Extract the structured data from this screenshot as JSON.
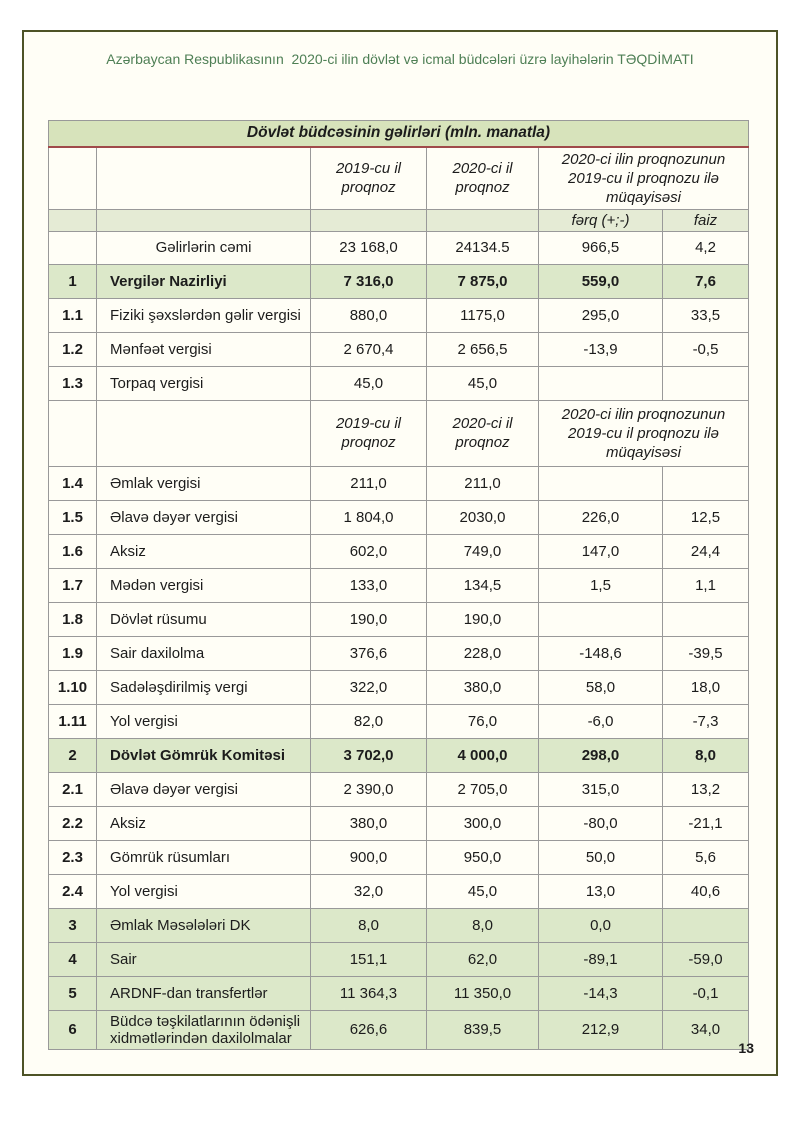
{
  "page": {
    "header": "Azərbaycan Respublikasının  2020-ci ilin dövlət və icmal büdcələri üzrə layihələrin TƏQDİMATI",
    "page_number": "13"
  },
  "colors": {
    "header_text": "#4e7f55",
    "frame_border": "#4d5326",
    "title_bg": "#d7e3bb",
    "title_underline": "#a04a4a",
    "row_green": "#dce8c9",
    "subheader_bg": "#e5ebd5"
  },
  "table": {
    "title": "Dövlət büdcəsinin gəlirləri (mln. manatla)",
    "headers": {
      "col2019": "2019-cu il proqnoz",
      "col2020": "2020-ci il proqnoz",
      "comparison": "2020-ci ilin proqnozunun 2019-cu il proqnozu ilə müqayisəsi",
      "diff": "fərq (+;-)",
      "pct": "faiz"
    },
    "rows": [
      {
        "type": "title"
      },
      {
        "type": "columns"
      },
      {
        "type": "subcols"
      },
      {
        "type": "total",
        "num": "",
        "name": "Gəlirlərin cəmi",
        "v2019": "23 168,0",
        "v2020": "24134.5",
        "diff": "966,5",
        "pct": "4,2"
      },
      {
        "type": "section",
        "num": "1",
        "name": "Vergilər Nazirliyi",
        "v2019": "7 316,0",
        "v2020": "7 875,0",
        "diff": "559,0",
        "pct": "7,6"
      },
      {
        "type": "item",
        "num": "1.1",
        "name": "Fiziki şəxslərdən gəlir vergisi",
        "v2019": "880,0",
        "v2020": "1175,0",
        "diff": "295,0",
        "pct": "33,5"
      },
      {
        "type": "item",
        "num": "1.2",
        "name": "Mənfəət vergisi",
        "v2019": "2 670,4",
        "v2020": "2 656,5",
        "diff": "-13,9",
        "pct": "-0,5"
      },
      {
        "type": "item",
        "num": "1.3",
        "name": "Torpaq vergisi",
        "v2019": "45,0",
        "v2020": "45,0",
        "diff": "",
        "pct": ""
      },
      {
        "type": "columns",
        "tall": true
      },
      {
        "type": "item",
        "num": "1.4",
        "name": "Əmlak vergisi",
        "v2019": "211,0",
        "v2020": "211,0",
        "diff": "",
        "pct": ""
      },
      {
        "type": "item",
        "num": "1.5",
        "name": "Əlavə dəyər vergisi",
        "v2019": "1 804,0",
        "v2020": "2030,0",
        "diff": "226,0",
        "pct": "12,5"
      },
      {
        "type": "item",
        "num": "1.6",
        "name": "Aksiz",
        "v2019": "602,0",
        "v2020": "749,0",
        "diff": "147,0",
        "pct": "24,4"
      },
      {
        "type": "item",
        "num": "1.7",
        "name": "Mədən vergisi",
        "v2019": "133,0",
        "v2020": "134,5",
        "diff": "1,5",
        "pct": "1,1"
      },
      {
        "type": "item",
        "num": "1.8",
        "name": "Dövlət rüsumu",
        "v2019": "190,0",
        "v2020": "190,0",
        "diff": "",
        "pct": ""
      },
      {
        "type": "item",
        "num": "1.9",
        "name": "Sair daxilolma",
        "v2019": "376,6",
        "v2020": "228,0",
        "diff": "-148,6",
        "pct": "-39,5"
      },
      {
        "type": "item",
        "num": "1.10",
        "name": "Sadələşdirilmiş  vergi",
        "v2019": "322,0",
        "v2020": "380,0",
        "diff": "58,0",
        "pct": "18,0"
      },
      {
        "type": "item",
        "num": "1.11",
        "name": "Yol vergisi",
        "v2019": "82,0",
        "v2020": "76,0",
        "diff": "-6,0",
        "pct": "-7,3"
      },
      {
        "type": "section",
        "num": "2",
        "name": "Dövlət Gömrük Komitəsi",
        "v2019": "3 702,0",
        "v2020": "4 000,0",
        "diff": "298,0",
        "pct": "8,0"
      },
      {
        "type": "item",
        "num": "2.1",
        "name": "Əlavə dəyər vergisi",
        "v2019": "2 390,0",
        "v2020": "2 705,0",
        "diff": "315,0",
        "pct": "13,2"
      },
      {
        "type": "item",
        "num": "2.2",
        "name": "Aksiz",
        "v2019": "380,0",
        "v2020": "300,0",
        "diff": "-80,0",
        "pct": "-21,1"
      },
      {
        "type": "item",
        "num": "2.3",
        "name": "Gömrük  rüsumları",
        "v2019": "900,0",
        "v2020": "950,0",
        "diff": "50,0",
        "pct": "5,6"
      },
      {
        "type": "item",
        "num": "2.4",
        "name": "Yol vergisi",
        "v2019": "32,0",
        "v2020": "45,0",
        "diff": "13,0",
        "pct": "40,6"
      },
      {
        "type": "green",
        "num": "3",
        "name": "Əmlak Məsələləri DK",
        "v2019": "8,0",
        "v2020": "8,0",
        "diff": "0,0",
        "pct": ""
      },
      {
        "type": "green",
        "num": "4",
        "name": "Sair",
        "v2019": "151,1",
        "v2020": "62,0",
        "diff": "-89,1",
        "pct": "-59,0"
      },
      {
        "type": "green",
        "num": "5",
        "name": "ARDNF-dan transfertlər",
        "v2019": "11 364,3",
        "v2020": "11 350,0",
        "diff": "-14,3",
        "pct": "-0,1"
      },
      {
        "type": "green",
        "num": "6",
        "name": "Büdcə təşkilatlarının ödənişli xidmətlərindən daxilolmalar",
        "v2019": "626,6",
        "v2020": "839,5",
        "diff": "212,9",
        "pct": "34,0"
      }
    ]
  }
}
